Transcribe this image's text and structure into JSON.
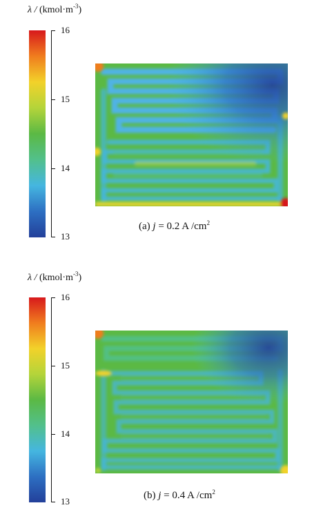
{
  "chart_data": [
    {
      "type": "heatmap",
      "colorbar_label": "(kmol·m",
      "colorbar_label_symbol": "λ / ",
      "colorbar_label_exp": "-3",
      "colorbar_label_close": ")",
      "range": [
        13,
        16
      ],
      "ticks": [
        "16",
        "15",
        "14",
        "13"
      ],
      "caption_prefix": "(a) ",
      "caption_var": "j",
      "caption_value": " = 0.2 A /cm",
      "caption_exp": "2",
      "current_density": 0.2,
      "field_summary": {
        "background": 14.6,
        "upper_right_min": 13.3,
        "corner_max": 16.0
      }
    },
    {
      "type": "heatmap",
      "colorbar_label": "(kmol·m",
      "colorbar_label_symbol": "λ / ",
      "colorbar_label_exp": "-3",
      "colorbar_label_close": ")",
      "range": [
        13,
        16
      ],
      "ticks": [
        "16",
        "15",
        "14",
        "13"
      ],
      "caption_prefix": "(b) ",
      "caption_var": "j",
      "caption_value": " = 0.4 A /cm",
      "caption_exp": "2",
      "current_density": 0.4,
      "field_summary": {
        "background": 14.5,
        "upper_right_min": 13.3,
        "corner_max": 16.0
      }
    }
  ],
  "colors": {
    "scale": [
      "#d7191c",
      "#f07d1e",
      "#f2d22a",
      "#b4d43a",
      "#5bb944",
      "#52c08c",
      "#45b6e0",
      "#2d6fc2",
      "#23409a"
    ],
    "channel_high": "#5bb944",
    "channel_low": "#45b6e0",
    "dry_region": "#2d6fc2"
  }
}
